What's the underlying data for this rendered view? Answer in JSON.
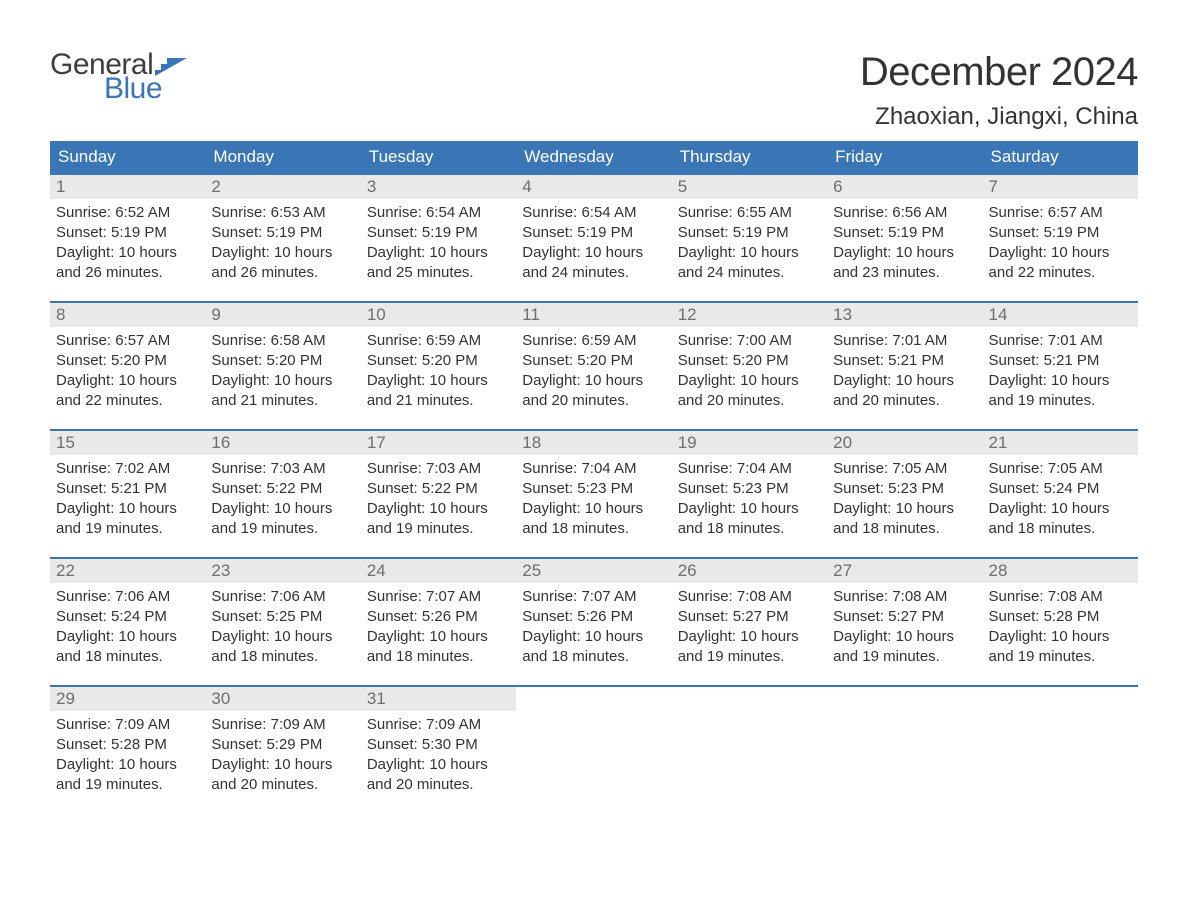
{
  "logo": {
    "text_general": "General",
    "text_blue": "Blue",
    "shape_color": "#3a76b5"
  },
  "header": {
    "month_title": "December 2024",
    "location": "Zhaoxian, Jiangxi, China"
  },
  "colors": {
    "header_bg": "#3a76b5",
    "header_text": "#ffffff",
    "daynum_bg": "#e9e9e9",
    "daynum_text": "#6e6e6e",
    "body_text": "#333333",
    "page_bg": "#ffffff",
    "week_border": "#3a76b5"
  },
  "weekdays": [
    "Sunday",
    "Monday",
    "Tuesday",
    "Wednesday",
    "Thursday",
    "Friday",
    "Saturday"
  ],
  "labels": {
    "sunrise": "Sunrise:",
    "sunset": "Sunset:",
    "daylight": "Daylight:"
  },
  "weeks": [
    [
      {
        "day": "1",
        "sunrise": "6:52 AM",
        "sunset": "5:19 PM",
        "daylight_l1": "10 hours",
        "daylight_l2": "and 26 minutes."
      },
      {
        "day": "2",
        "sunrise": "6:53 AM",
        "sunset": "5:19 PM",
        "daylight_l1": "10 hours",
        "daylight_l2": "and 26 minutes."
      },
      {
        "day": "3",
        "sunrise": "6:54 AM",
        "sunset": "5:19 PM",
        "daylight_l1": "10 hours",
        "daylight_l2": "and 25 minutes."
      },
      {
        "day": "4",
        "sunrise": "6:54 AM",
        "sunset": "5:19 PM",
        "daylight_l1": "10 hours",
        "daylight_l2": "and 24 minutes."
      },
      {
        "day": "5",
        "sunrise": "6:55 AM",
        "sunset": "5:19 PM",
        "daylight_l1": "10 hours",
        "daylight_l2": "and 24 minutes."
      },
      {
        "day": "6",
        "sunrise": "6:56 AM",
        "sunset": "5:19 PM",
        "daylight_l1": "10 hours",
        "daylight_l2": "and 23 minutes."
      },
      {
        "day": "7",
        "sunrise": "6:57 AM",
        "sunset": "5:19 PM",
        "daylight_l1": "10 hours",
        "daylight_l2": "and 22 minutes."
      }
    ],
    [
      {
        "day": "8",
        "sunrise": "6:57 AM",
        "sunset": "5:20 PM",
        "daylight_l1": "10 hours",
        "daylight_l2": "and 22 minutes."
      },
      {
        "day": "9",
        "sunrise": "6:58 AM",
        "sunset": "5:20 PM",
        "daylight_l1": "10 hours",
        "daylight_l2": "and 21 minutes."
      },
      {
        "day": "10",
        "sunrise": "6:59 AM",
        "sunset": "5:20 PM",
        "daylight_l1": "10 hours",
        "daylight_l2": "and 21 minutes."
      },
      {
        "day": "11",
        "sunrise": "6:59 AM",
        "sunset": "5:20 PM",
        "daylight_l1": "10 hours",
        "daylight_l2": "and 20 minutes."
      },
      {
        "day": "12",
        "sunrise": "7:00 AM",
        "sunset": "5:20 PM",
        "daylight_l1": "10 hours",
        "daylight_l2": "and 20 minutes."
      },
      {
        "day": "13",
        "sunrise": "7:01 AM",
        "sunset": "5:21 PM",
        "daylight_l1": "10 hours",
        "daylight_l2": "and 20 minutes."
      },
      {
        "day": "14",
        "sunrise": "7:01 AM",
        "sunset": "5:21 PM",
        "daylight_l1": "10 hours",
        "daylight_l2": "and 19 minutes."
      }
    ],
    [
      {
        "day": "15",
        "sunrise": "7:02 AM",
        "sunset": "5:21 PM",
        "daylight_l1": "10 hours",
        "daylight_l2": "and 19 minutes."
      },
      {
        "day": "16",
        "sunrise": "7:03 AM",
        "sunset": "5:22 PM",
        "daylight_l1": "10 hours",
        "daylight_l2": "and 19 minutes."
      },
      {
        "day": "17",
        "sunrise": "7:03 AM",
        "sunset": "5:22 PM",
        "daylight_l1": "10 hours",
        "daylight_l2": "and 19 minutes."
      },
      {
        "day": "18",
        "sunrise": "7:04 AM",
        "sunset": "5:23 PM",
        "daylight_l1": "10 hours",
        "daylight_l2": "and 18 minutes."
      },
      {
        "day": "19",
        "sunrise": "7:04 AM",
        "sunset": "5:23 PM",
        "daylight_l1": "10 hours",
        "daylight_l2": "and 18 minutes."
      },
      {
        "day": "20",
        "sunrise": "7:05 AM",
        "sunset": "5:23 PM",
        "daylight_l1": "10 hours",
        "daylight_l2": "and 18 minutes."
      },
      {
        "day": "21",
        "sunrise": "7:05 AM",
        "sunset": "5:24 PM",
        "daylight_l1": "10 hours",
        "daylight_l2": "and 18 minutes."
      }
    ],
    [
      {
        "day": "22",
        "sunrise": "7:06 AM",
        "sunset": "5:24 PM",
        "daylight_l1": "10 hours",
        "daylight_l2": "and 18 minutes."
      },
      {
        "day": "23",
        "sunrise": "7:06 AM",
        "sunset": "5:25 PM",
        "daylight_l1": "10 hours",
        "daylight_l2": "and 18 minutes."
      },
      {
        "day": "24",
        "sunrise": "7:07 AM",
        "sunset": "5:26 PM",
        "daylight_l1": "10 hours",
        "daylight_l2": "and 18 minutes."
      },
      {
        "day": "25",
        "sunrise": "7:07 AM",
        "sunset": "5:26 PM",
        "daylight_l1": "10 hours",
        "daylight_l2": "and 18 minutes."
      },
      {
        "day": "26",
        "sunrise": "7:08 AM",
        "sunset": "5:27 PM",
        "daylight_l1": "10 hours",
        "daylight_l2": "and 19 minutes."
      },
      {
        "day": "27",
        "sunrise": "7:08 AM",
        "sunset": "5:27 PM",
        "daylight_l1": "10 hours",
        "daylight_l2": "and 19 minutes."
      },
      {
        "day": "28",
        "sunrise": "7:08 AM",
        "sunset": "5:28 PM",
        "daylight_l1": "10 hours",
        "daylight_l2": "and 19 minutes."
      }
    ],
    [
      {
        "day": "29",
        "sunrise": "7:09 AM",
        "sunset": "5:28 PM",
        "daylight_l1": "10 hours",
        "daylight_l2": "and 19 minutes."
      },
      {
        "day": "30",
        "sunrise": "7:09 AM",
        "sunset": "5:29 PM",
        "daylight_l1": "10 hours",
        "daylight_l2": "and 20 minutes."
      },
      {
        "day": "31",
        "sunrise": "7:09 AM",
        "sunset": "5:30 PM",
        "daylight_l1": "10 hours",
        "daylight_l2": "and 20 minutes."
      },
      {
        "empty": true
      },
      {
        "empty": true
      },
      {
        "empty": true
      },
      {
        "empty": true
      }
    ]
  ]
}
